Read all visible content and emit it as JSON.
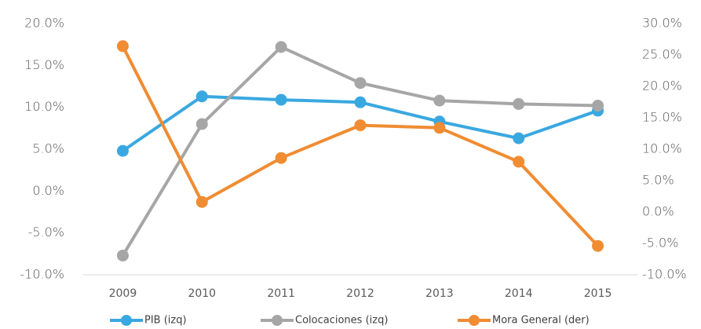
{
  "chart_data": {
    "type": "line",
    "categories": [
      "2009",
      "2010",
      "2011",
      "2012",
      "2013",
      "2014",
      "2015"
    ],
    "series": [
      {
        "name": "PIB (izq)",
        "color": "#3aa8e0",
        "values": [
          4.8,
          11.3,
          10.9,
          10.6,
          8.3,
          6.3,
          9.6
        ]
      },
      {
        "name": "Colocaciones (izq)",
        "color": "#a6a6a6",
        "values": [
          -7.7,
          8.0,
          17.2,
          12.9,
          10.8,
          10.4,
          10.2
        ]
      },
      {
        "name": "Mora General (der)",
        "color": "#f08c32",
        "axis": "y2",
        "values": [
          26.4,
          1.6,
          8.6,
          13.8,
          13.4,
          8.0,
          -5.4
        ]
      }
    ],
    "ylim": [
      -10,
      20
    ],
    "yticks": [
      {
        "value": -10,
        "label": "-10.0%"
      },
      {
        "value": -5,
        "label": "-5.0%"
      },
      {
        "value": 0,
        "label": "0.0%"
      },
      {
        "value": 5,
        "label": "5.0%"
      },
      {
        "value": 10,
        "label": "10.0%"
      },
      {
        "value": 15,
        "label": "15.0%"
      },
      {
        "value": 20,
        "label": "20.0%"
      }
    ],
    "y2lim": [
      -10,
      30
    ],
    "y2ticks": [
      {
        "value": -10,
        "label": "-10.0%"
      },
      {
        "value": -5,
        "label": "-5.0%"
      },
      {
        "value": 0,
        "label": "0.0%"
      },
      {
        "value": 5,
        "label": "5.0%"
      },
      {
        "value": 10,
        "label": "10.0%"
      },
      {
        "value": 15,
        "label": "15.0%"
      },
      {
        "value": 20,
        "label": "20.0%"
      },
      {
        "value": 25,
        "label": "25.0%"
      },
      {
        "value": 30,
        "label": "30.0%"
      }
    ],
    "legend": "bottom"
  }
}
